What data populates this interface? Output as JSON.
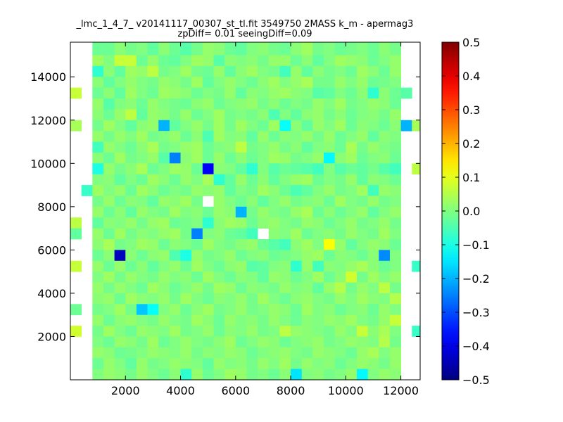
{
  "chart_data": {
    "type": "heatmap",
    "title": "_lmc_1_4_7_ v20141117_00307_st_tl.fit 3549750 2MASS k_m - apermag3",
    "subtitle": "zpDiff= 0.01 seeingDiff=0.09",
    "xlabel": "",
    "ylabel": "",
    "xlim": [
      0,
      12700
    ],
    "ylim": [
      0,
      15600
    ],
    "xticks": [
      2000,
      4000,
      6000,
      8000,
      10000,
      12000
    ],
    "yticks": [
      2000,
      4000,
      6000,
      8000,
      10000,
      12000,
      14000
    ],
    "grid": false,
    "colormap": "jet",
    "colorbar": {
      "range": [
        -0.5,
        0.5
      ],
      "ticks": [
        0.5,
        0.4,
        0.3,
        0.2,
        0.1,
        0.0,
        -0.1,
        -0.2,
        -0.3,
        -0.4,
        -0.5
      ],
      "tick_labels": [
        "0.5",
        "0.4",
        "0.3",
        "0.2",
        "0.1",
        "0.0",
        "−0.1",
        "−0.2",
        "−0.3",
        "−0.4",
        "−0.5"
      ]
    },
    "x_edges": [
      0,
      400,
      800,
      1200,
      1600,
      2000,
      2400,
      2800,
      3200,
      3600,
      4000,
      4400,
      4800,
      5200,
      5600,
      6000,
      6400,
      6800,
      7200,
      7600,
      8000,
      8400,
      8800,
      9200,
      9600,
      10000,
      10400,
      10800,
      11200,
      11600,
      12000,
      12400,
      12700
    ],
    "y_edges": [
      0,
      500,
      1000,
      1500,
      2000,
      2500,
      3000,
      3500,
      4000,
      4500,
      5000,
      5500,
      6000,
      6500,
      7000,
      7500,
      8000,
      8500,
      9000,
      9500,
      10000,
      10500,
      11000,
      11500,
      12000,
      12500,
      13000,
      13500,
      14000,
      14500,
      15000,
      15600
    ],
    "values_row_order": "top-to-bottom",
    "values": [
      [
        null,
        null,
        -0.02,
        -0.02,
        0.01,
        -0.01,
        0.0,
        -0.03,
        0.01,
        -0.02,
        -0.04,
        -0.01,
        0.02,
        0.01,
        -0.02,
        -0.03,
        0.0,
        0.01,
        -0.01,
        -0.02,
        0.01,
        0.03,
        -0.01,
        0.0,
        -0.02,
        -0.01,
        0.0,
        -0.02,
        0.01,
        -0.01,
        null,
        null
      ],
      [
        null,
        null,
        0.03,
        0.0,
        0.07,
        0.07,
        -0.02,
        0.02,
        -0.02,
        -0.03,
        0.0,
        0.03,
        0.02,
        -0.04,
        0.01,
        0.0,
        0.01,
        -0.01,
        0.02,
        0.02,
        -0.02,
        0.01,
        -0.03,
        0.0,
        0.03,
        0.02,
        0.01,
        -0.02,
        0.0,
        0.02,
        null,
        null
      ],
      [
        null,
        null,
        -0.08,
        0.01,
        -0.03,
        0.03,
        0.02,
        0.06,
        -0.01,
        0.0,
        0.03,
        -0.01,
        -0.02,
        0.02,
        -0.03,
        0.01,
        0.03,
        0.0,
        -0.01,
        -0.06,
        0.02,
        -0.03,
        0.01,
        -0.01,
        0.0,
        -0.02,
        0.03,
        0.01,
        -0.02,
        0.02,
        null,
        null
      ],
      [
        null,
        null,
        0.01,
        -0.03,
        0.0,
        0.02,
        0.0,
        -0.01,
        0.02,
        0.01,
        -0.01,
        0.03,
        -0.03,
        0.0,
        0.02,
        0.0,
        -0.02,
        0.01,
        0.03,
        0.0,
        0.02,
        0.04,
        -0.01,
        -0.01,
        0.02,
        0.0,
        0.02,
        -0.02,
        -0.01,
        0.0,
        null,
        null
      ],
      [
        0.07,
        null,
        -0.02,
        0.01,
        -0.03,
        0.03,
        0.0,
        -0.02,
        0.03,
        0.02,
        0.01,
        -0.02,
        0.0,
        -0.01,
        0.02,
        -0.03,
        0.01,
        0.0,
        0.02,
        0.03,
        0.01,
        0.0,
        -0.04,
        -0.03,
        0.0,
        -0.02,
        0.01,
        -0.08,
        0.01,
        -0.02,
        -0.04,
        null
      ],
      [
        null,
        null,
        0.02,
        -0.04,
        0.0,
        0.01,
        -0.02,
        0.02,
        0.0,
        -0.01,
        -0.02,
        0.01,
        0.02,
        -0.02,
        0.0,
        0.01,
        0.02,
        -0.01,
        0.01,
        -0.02,
        0.0,
        -0.01,
        0.02,
        0.0,
        0.03,
        -0.01,
        0.0,
        0.02,
        0.01,
        -0.02,
        null,
        null
      ],
      [
        null,
        null,
        0.01,
        -0.02,
        0.02,
        0.06,
        -0.03,
        0.02,
        0.01,
        -0.01,
        0.02,
        -0.02,
        0.0,
        0.03,
        -0.01,
        0.0,
        -0.01,
        0.01,
        -0.05,
        0.0,
        -0.03,
        0.01,
        0.02,
        -0.01,
        0.01,
        -0.02,
        0.0,
        0.01,
        -0.01,
        0.02,
        null,
        null
      ],
      [
        0.04,
        null,
        -0.01,
        0.03,
        0.0,
        -0.03,
        0.01,
        0.02,
        -0.2,
        -0.03,
        0.0,
        0.02,
        -0.01,
        0.03,
        -0.01,
        0.03,
        0.0,
        -0.02,
        0.03,
        -0.12,
        0.01,
        -0.03,
        0.02,
        0.0,
        0.03,
        -0.02,
        0.01,
        0.0,
        -0.02,
        0.01,
        -0.2,
        0.04
      ],
      [
        null,
        null,
        0.02,
        -0.01,
        0.02,
        0.0,
        0.03,
        -0.01,
        0.0,
        0.02,
        -0.02,
        0.01,
        -0.05,
        0.03,
        0.0,
        0.01,
        -0.03,
        0.02,
        -0.02,
        0.01,
        0.0,
        0.02,
        -0.01,
        0.02,
        -0.02,
        0.0,
        0.02,
        -0.03,
        0.01,
        0.0,
        null,
        null
      ],
      [
        null,
        null,
        -0.06,
        0.02,
        0.0,
        -0.02,
        0.01,
        0.04,
        -0.01,
        0.0,
        0.02,
        0.03,
        -0.02,
        0.0,
        0.01,
        0.06,
        -0.01,
        0.0,
        0.02,
        -0.01,
        0.01,
        -0.03,
        0.0,
        0.01,
        -0.02,
        0.04,
        -0.01,
        0.02,
        0.0,
        -0.01,
        null,
        null
      ],
      [
        null,
        null,
        0.01,
        -0.02,
        0.03,
        -0.01,
        0.0,
        0.02,
        -0.04,
        -0.25,
        0.01,
        0.03,
        -0.02,
        0.02,
        -0.02,
        0.01,
        -0.02,
        0.0,
        0.03,
        0.02,
        -0.01,
        0.0,
        0.02,
        -0.13,
        0.01,
        0.03,
        -0.02,
        0.0,
        0.01,
        -0.02,
        null,
        null
      ],
      [
        null,
        null,
        -0.1,
        0.02,
        -0.01,
        0.01,
        0.04,
        -0.02,
        0.0,
        0.03,
        0.02,
        -0.02,
        -0.38,
        0.01,
        0.0,
        -0.03,
        -0.08,
        0.0,
        -0.04,
        -0.02,
        -0.03,
        -0.04,
        -0.06,
        0.0,
        -0.04,
        -0.02,
        -0.03,
        -0.01,
        -0.04,
        -0.06,
        null,
        0.06
      ],
      [
        null,
        null,
        0.0,
        0.01,
        -0.03,
        0.0,
        -0.02,
        0.03,
        0.01,
        -0.02,
        0.02,
        0.0,
        0.04,
        -0.08,
        -0.03,
        0.02,
        -0.02,
        0.01,
        -0.03,
        0.0,
        0.02,
        0.03,
        -0.02,
        0.0,
        -0.01,
        0.02,
        -0.03,
        0.01,
        0.0,
        -0.02,
        null,
        null
      ],
      [
        null,
        -0.07,
        0.03,
        0.0,
        0.02,
        -0.02,
        0.03,
        0.01,
        -0.02,
        0.0,
        -0.01,
        0.02,
        0.01,
        0.02,
        -0.03,
        0.0,
        -0.01,
        0.03,
        0.01,
        -0.02,
        -0.05,
        -0.03,
        0.0,
        0.02,
        -0.01,
        0.0,
        0.03,
        -0.06,
        0.02,
        0.01,
        null,
        null
      ],
      [
        null,
        null,
        -0.01,
        0.02,
        -0.02,
        0.01,
        0.0,
        -0.03,
        0.02,
        0.01,
        0.03,
        -0.01,
        null,
        0.02,
        0.0,
        -0.02,
        0.01,
        -0.03,
        0.0,
        0.02,
        -0.01,
        0.0,
        0.01,
        -0.02,
        0.03,
        0.0,
        -0.01,
        0.02,
        -0.01,
        0.0,
        null,
        null
      ],
      [
        null,
        null,
        0.02,
        -0.02,
        0.01,
        -0.03,
        0.02,
        0.0,
        -0.01,
        0.03,
        0.0,
        0.01,
        -0.02,
        0.02,
        0.01,
        -0.2,
        -0.01,
        0.02,
        0.0,
        -0.01,
        0.02,
        0.04,
        -0.02,
        0.01,
        -0.02,
        0.0,
        0.02,
        -0.03,
        0.0,
        0.02,
        null,
        null
      ],
      [
        0.06,
        null,
        -0.03,
        0.01,
        0.0,
        0.02,
        -0.01,
        0.02,
        0.03,
        -0.02,
        -0.01,
        0.0,
        -0.08,
        0.01,
        0.03,
        0.02,
        -0.02,
        0.01,
        0.02,
        0.0,
        -0.01,
        0.02,
        0.01,
        -0.02,
        0.0,
        0.02,
        -0.01,
        0.0,
        0.02,
        -0.01,
        null,
        null
      ],
      [
        -0.03,
        null,
        0.02,
        -0.02,
        0.03,
        -0.01,
        0.01,
        0.0,
        0.02,
        0.03,
        -0.01,
        -0.25,
        0.0,
        0.01,
        -0.02,
        -0.03,
        -0.06,
        null,
        0.01,
        0.0,
        0.03,
        -0.02,
        0.0,
        0.01,
        -0.01,
        0.02,
        0.0,
        -0.01,
        0.03,
        0.0,
        null,
        null
      ],
      [
        null,
        null,
        0.01,
        0.04,
        -0.01,
        0.0,
        0.03,
        0.02,
        -0.02,
        0.01,
        0.0,
        -0.02,
        0.03,
        0.0,
        -0.01,
        0.01,
        0.02,
        -0.02,
        -0.04,
        -0.06,
        0.01,
        0.03,
        0.0,
        0.12,
        0.02,
        -0.03,
        0.0,
        0.02,
        0.01,
        -0.02,
        null,
        null
      ],
      [
        null,
        null,
        -0.02,
        0.01,
        -0.44,
        0.01,
        -0.02,
        0.01,
        0.02,
        -0.05,
        -0.1,
        0.02,
        -0.01,
        0.0,
        0.02,
        -0.02,
        0.0,
        0.01,
        -0.02,
        -0.01,
        0.0,
        0.02,
        0.03,
        -0.02,
        0.01,
        0.0,
        -0.02,
        0.01,
        -0.24,
        0.0,
        null,
        null
      ],
      [
        0.07,
        null,
        0.02,
        -0.02,
        0.02,
        -0.02,
        0.01,
        -0.03,
        0.0,
        0.02,
        -0.02,
        0.03,
        0.0,
        -0.02,
        0.01,
        0.02,
        -0.04,
        -0.03,
        0.0,
        0.01,
        -0.08,
        0.02,
        -0.06,
        0.01,
        0.0,
        0.02,
        0.04,
        0.01,
        -0.02,
        0.0,
        null,
        -0.07
      ],
      [
        null,
        null,
        0.0,
        0.03,
        -0.01,
        0.02,
        0.0,
        -0.01,
        0.02,
        0.0,
        0.01,
        -0.02,
        0.03,
        0.0,
        -0.02,
        0.01,
        0.0,
        -0.03,
        0.02,
        0.01,
        -0.02,
        0.0,
        0.03,
        -0.02,
        0.01,
        0.08,
        -0.01,
        0.03,
        0.0,
        0.02,
        null,
        null
      ],
      [
        null,
        null,
        0.02,
        -0.01,
        0.02,
        0.0,
        -0.02,
        0.03,
        0.01,
        -0.02,
        0.0,
        0.02,
        -0.01,
        0.03,
        0.02,
        -0.02,
        0.01,
        0.0,
        -0.01,
        0.02,
        0.0,
        0.01,
        -0.03,
        0.02,
        0.05,
        -0.01,
        0.02,
        0.0,
        0.06,
        -0.01,
        null,
        null
      ],
      [
        null,
        null,
        0.01,
        0.02,
        -0.02,
        0.03,
        0.01,
        0.0,
        0.02,
        -0.01,
        0.03,
        0.0,
        -0.02,
        0.01,
        0.0,
        0.02,
        -0.01,
        0.03,
        0.0,
        -0.02,
        0.01,
        0.02,
        0.0,
        -0.01,
        0.02,
        0.0,
        0.03,
        0.01,
        0.0,
        0.05,
        null,
        null
      ],
      [
        -0.02,
        null,
        -0.01,
        0.0,
        0.03,
        -0.01,
        -0.18,
        -0.12,
        0.0,
        0.02,
        -0.02,
        0.01,
        0.03,
        -0.01,
        0.0,
        0.02,
        -0.01,
        0.0,
        0.02,
        0.01,
        -0.02,
        0.03,
        0.0,
        0.01,
        -0.02,
        0.0,
        0.01,
        -0.02,
        0.02,
        0.0,
        null,
        null
      ],
      [
        null,
        null,
        0.02,
        -0.02,
        0.01,
        0.02,
        0.0,
        -0.01,
        0.02,
        0.0,
        -0.01,
        0.03,
        0.01,
        -0.02,
        0.02,
        0.0,
        0.01,
        -0.01,
        0.02,
        0.0,
        -0.02,
        0.01,
        0.0,
        0.02,
        0.01,
        0.03,
        0.0,
        -0.01,
        0.02,
        0.07,
        null,
        null
      ],
      [
        0.08,
        null,
        -0.01,
        0.03,
        0.0,
        -0.02,
        0.02,
        0.01,
        0.0,
        0.03,
        -0.01,
        0.0,
        0.02,
        -0.02,
        0.01,
        0.0,
        0.02,
        -0.01,
        0.0,
        0.06,
        0.02,
        0.01,
        0.0,
        -0.01,
        0.02,
        0.0,
        0.07,
        0.01,
        0.04,
        0.0,
        null,
        -0.07
      ],
      [
        null,
        null,
        0.0,
        -0.02,
        0.02,
        0.01,
        -0.01,
        0.03,
        -0.02,
        0.0,
        0.02,
        0.0,
        -0.01,
        0.01,
        0.03,
        -0.02,
        0.0,
        0.02,
        0.01,
        -0.02,
        0.0,
        0.01,
        0.02,
        -0.01,
        0.0,
        0.02,
        0.01,
        0.0,
        0.05,
        -0.01,
        null,
        null
      ],
      [
        null,
        null,
        0.02,
        0.01,
        -0.02,
        -0.01,
        0.0,
        0.02,
        0.01,
        0.0,
        0.02,
        -0.01,
        0.01,
        0.0,
        0.02,
        0.01,
        -0.02,
        0.0,
        0.01,
        0.02,
        0.0,
        -0.01,
        0.02,
        0.01,
        0.0,
        -0.02,
        0.02,
        0.04,
        0.0,
        0.02,
        null,
        null
      ],
      [
        null,
        null,
        -0.02,
        0.02,
        0.0,
        -0.03,
        0.02,
        -0.01,
        0.0,
        0.02,
        0.01,
        0.0,
        -0.03,
        0.02,
        0.0,
        0.01,
        -0.01,
        0.02,
        0.0,
        0.03,
        -0.01,
        0.02,
        0.0,
        0.01,
        -0.02,
        0.0,
        0.02,
        0.01,
        -0.01,
        0.02,
        null,
        null
      ],
      [
        null,
        null,
        0.0,
        0.02,
        0.01,
        -0.01,
        0.02,
        0.0,
        -0.02,
        0.01,
        -0.08,
        0.02,
        -0.02,
        0.0,
        0.03,
        0.02,
        -0.01,
        0.0,
        -0.02,
        0.01,
        -0.15,
        0.0,
        0.01,
        -0.01,
        0.0,
        0.02,
        -0.13,
        0.0,
        0.02,
        0.01,
        null,
        null
      ]
    ]
  }
}
